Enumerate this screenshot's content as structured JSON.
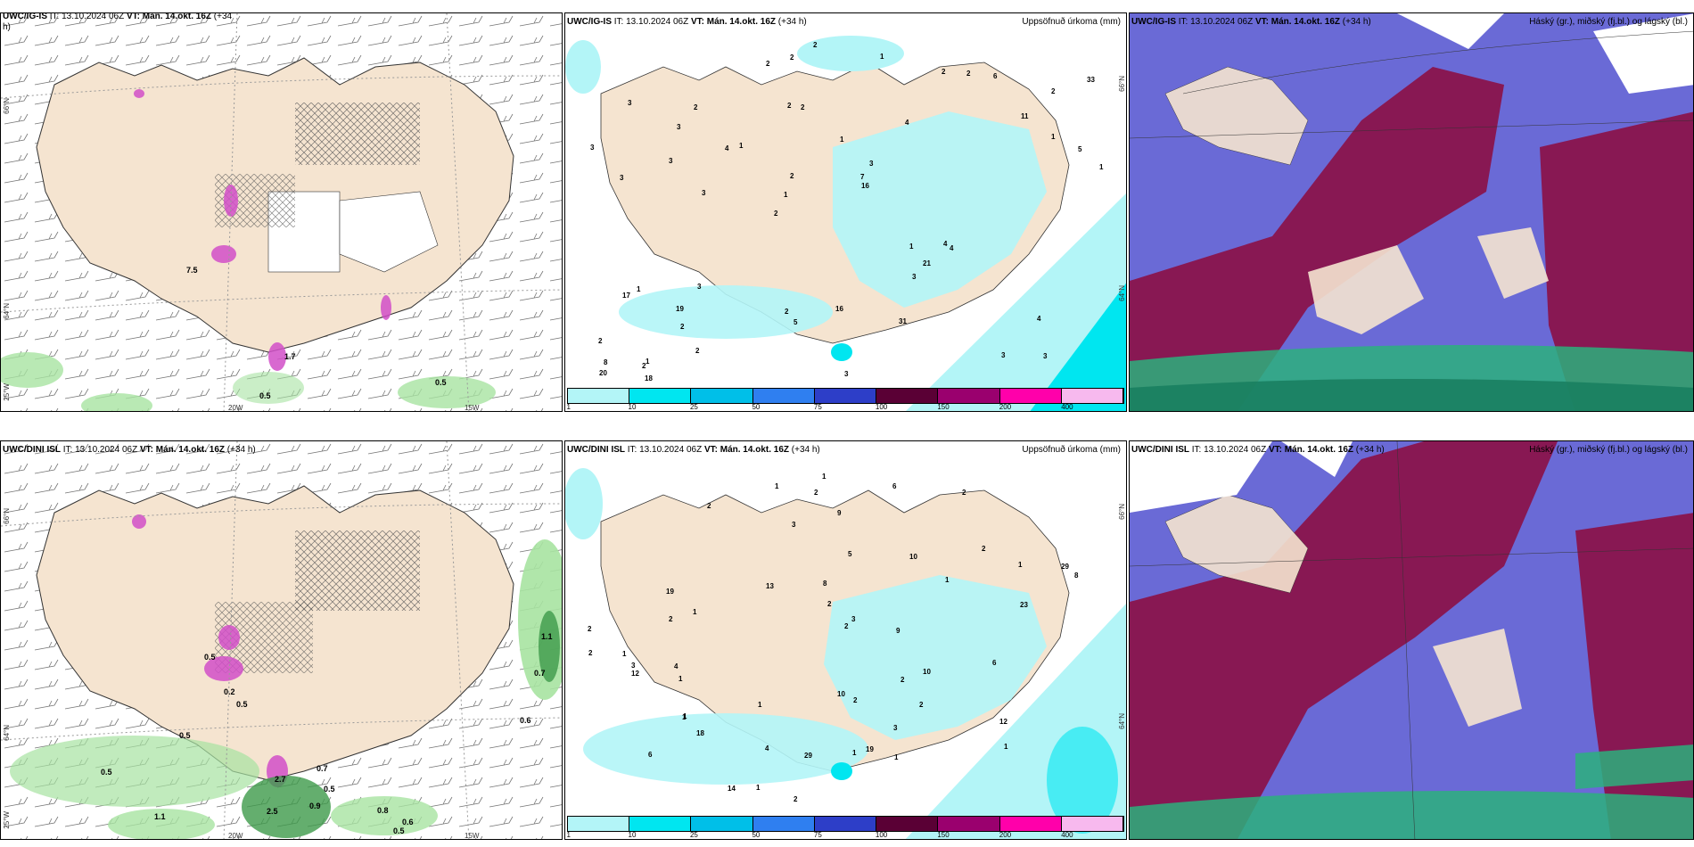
{
  "rows": [
    {
      "model": "UWC/IG-IS",
      "panels": [
        {
          "model": "UWC/IG-IS",
          "it_label": "IT:",
          "it": "13.10.2024 06Z",
          "vt_label": "VT:",
          "vt": "Mán. 14.okt. 16Z",
          "lead": "(+34",
          "lead2": "h)",
          "title": ""
        },
        {
          "model": "UWC/IG-IS",
          "it_label": "IT:",
          "it": "13.10.2024 06Z",
          "vt_label": "VT:",
          "vt": "Mán. 14.okt. 16Z",
          "lead": "(+34 h)",
          "title": "Uppsöfnuð úrkoma (mm)"
        },
        {
          "model": "UWC/IG-IS",
          "it_label": "IT:",
          "it": "13.10.2024 06Z",
          "vt_label": "VT:",
          "vt": "Mán. 14.okt. 16Z",
          "lead": "(+34 h)",
          "title": "Háský (gr.), miðský (fj.bl.) og lágský (bl.)"
        }
      ],
      "wind_values": [
        "7.5",
        "1.7",
        "0.5",
        "0.5"
      ],
      "precip_values": [
        "3",
        "3",
        "2",
        "2",
        "4",
        "1",
        "2",
        "1",
        "1",
        "1",
        "2",
        "2",
        "2",
        "3",
        "4",
        "3",
        "2",
        "1",
        "1",
        "1",
        "1",
        "2",
        "2",
        "2",
        "2",
        "3",
        "3",
        "4",
        "4",
        "3",
        "4",
        "3",
        "3",
        "2",
        "5",
        "7",
        "8",
        "5",
        "16",
        "17",
        "11",
        "33",
        "21",
        "31",
        "19",
        "18",
        "20",
        "16",
        "6",
        "2",
        "3",
        "3",
        "3",
        "2",
        "2",
        "1",
        "2"
      ]
    },
    {
      "model": "UWC/DINI ISL",
      "panels": [
        {
          "model": "UWC/DINI ISL",
          "it_label": "IT:",
          "it": "13.10.2024 06Z",
          "vt_label": "VT:",
          "vt": "Mán. 14.okt. 16Z",
          "lead": "(+34 h)",
          "lead2": "",
          "title": ""
        },
        {
          "model": "UWC/DINI ISL",
          "it_label": "IT:",
          "it": "13.10.2024 06Z",
          "vt_label": "VT:",
          "vt": "Mán. 14.okt. 16Z",
          "lead": "(+34 h)",
          "title": "Uppsöfnuð úrkoma (mm)"
        },
        {
          "model": "UWC/DINI ISL",
          "it_label": "IT:",
          "it": "13.10.2024 06Z",
          "vt_label": "VT:",
          "vt": "Mán. 14.okt. 16Z",
          "lead": "(+34 h)",
          "title": "Háský (gr.), miðský (fj.bl.) og lágský (bl.)"
        }
      ],
      "wind_values": [
        "1.1",
        "0.7",
        "0.6",
        "0.5",
        "0.5",
        "0.2",
        "0.7",
        "0.5",
        "0.9",
        "0.8",
        "0.6",
        "0.5",
        "0.5",
        "1.1",
        "2.7",
        "0.5",
        "2.5"
      ],
      "precip_values": [
        "6",
        "2",
        "2",
        "2",
        "2",
        "1",
        "1",
        "1",
        "1",
        "1",
        "1",
        "1",
        "2",
        "2",
        "2",
        "1",
        "1",
        "2",
        "1",
        "1",
        "1",
        "2",
        "3",
        "3",
        "2",
        "4",
        "3",
        "6",
        "5",
        "10",
        "19",
        "18",
        "19",
        "10",
        "12",
        "12",
        "29",
        "9",
        "10",
        "6",
        "8",
        "9",
        "29",
        "4",
        "2",
        "2",
        "2",
        "1",
        "1",
        "3",
        "13",
        "14",
        "8",
        "23"
      ]
    }
  ],
  "axes": {
    "lat_66": "66°N",
    "lat_64": "64°N",
    "lon_25": "25°W",
    "lon_20": "20W",
    "lon_15": "15W"
  },
  "legend": {
    "colors": [
      "#b3f5f7",
      "#00e6f0",
      "#00bfe8",
      "#2f7ff0",
      "#2d3ec8",
      "#5a0035",
      "#9a006e",
      "#ff00aa",
      "#f7b9ee"
    ],
    "ticks": [
      "1",
      "10",
      "25",
      "50",
      "75",
      "100",
      "150",
      "200",
      "400"
    ]
  },
  "colors": {
    "land": "#f5e4d0",
    "precip_light": "#b3f5f7",
    "precip_med": "#00e6f0",
    "green_shade": "#a7e3a1",
    "magenta": "#d14fc8",
    "cloud_high": "#6a6ad6",
    "cloud_mid": "#8c0f45",
    "cloud_low": "#2bb07c"
  }
}
